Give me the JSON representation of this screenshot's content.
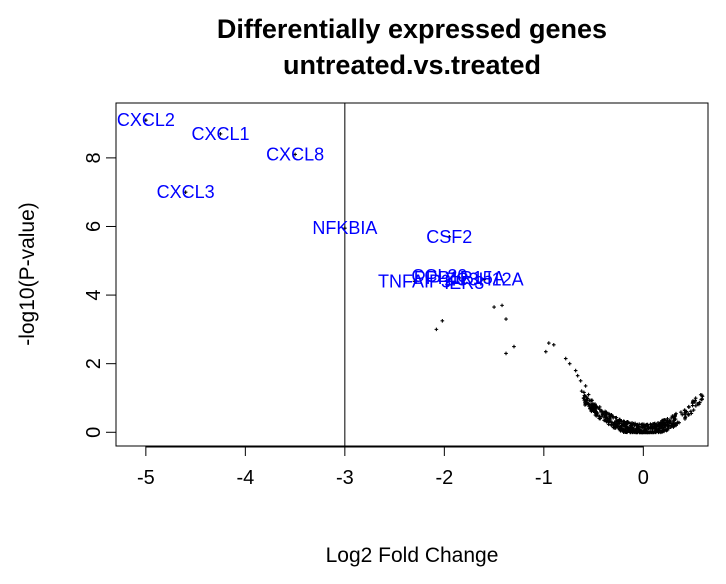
{
  "chart_data": {
    "type": "scatter",
    "title_line1": "Differentially expressed genes",
    "title_line2": "untreated.vs.treated",
    "xlabel": "Log2 Fold Change",
    "ylabel": "-log10(P-value)",
    "xlim": [
      -5.3,
      0.65
    ],
    "ylim": [
      -0.4,
      9.6
    ],
    "x_ticks": [
      -5,
      -4,
      -3,
      -2,
      -1,
      0
    ],
    "x_tick_labels": [
      "-5",
      "-4",
      "-3",
      "-2",
      "-1",
      "0"
    ],
    "y_ticks": [
      0,
      2,
      4,
      6,
      8
    ],
    "y_tick_labels": [
      "0",
      "2",
      "4",
      "6",
      "8"
    ],
    "threshold_x": -3,
    "point_color": "#000000",
    "label_color": "#0000FF",
    "labeled_genes": [
      {
        "name": "CXCL2",
        "x": -5.0,
        "y": 9.1
      },
      {
        "name": "CXCL1",
        "x": -4.25,
        "y": 8.7
      },
      {
        "name": "CXCL8",
        "x": -3.5,
        "y": 8.1
      },
      {
        "name": "CXCL3",
        "x": -4.6,
        "y": 7.0
      },
      {
        "name": "NFKBIA",
        "x": -3.0,
        "y": 5.95
      },
      {
        "name": "CSF2",
        "x": -1.95,
        "y": 5.7
      },
      {
        "name": "CCL20",
        "x": -2.05,
        "y": 4.55
      },
      {
        "name": "PPP1R15A",
        "x": -1.85,
        "y": 4.5
      },
      {
        "name": "ZC3H12A",
        "x": -1.6,
        "y": 4.45
      },
      {
        "name": "TNFAIP3",
        "x": -2.3,
        "y": 4.4
      },
      {
        "name": "IER3",
        "x": -1.8,
        "y": 4.35
      }
    ],
    "scatter_points": [
      [
        -2.08,
        3.0
      ],
      [
        -2.02,
        3.25
      ],
      [
        -1.5,
        3.65
      ],
      [
        -1.42,
        3.7
      ],
      [
        -1.38,
        3.3
      ],
      [
        -1.38,
        2.3
      ],
      [
        -1.3,
        2.5
      ],
      [
        -0.98,
        2.35
      ],
      [
        -0.95,
        2.6
      ],
      [
        -0.9,
        2.55
      ],
      [
        -0.78,
        2.15
      ],
      [
        -0.74,
        2.0
      ],
      [
        -0.68,
        1.8
      ],
      [
        -0.66,
        1.65
      ],
      [
        -0.63,
        1.5
      ],
      [
        -0.62,
        1.2
      ],
      [
        -0.58,
        1.35
      ],
      [
        -0.55,
        1.1
      ]
    ]
  }
}
